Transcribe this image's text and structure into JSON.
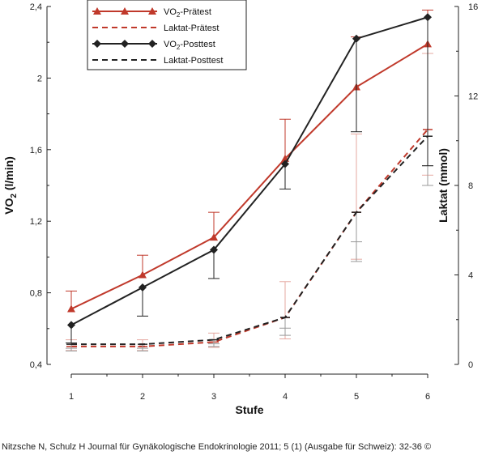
{
  "chart_data": {
    "type": "line",
    "categories": [
      "1",
      "2",
      "3",
      "4",
      "5",
      "6"
    ],
    "xlabel": "Stufe",
    "ylabel_left": {
      "main": "VO",
      "sub": "2",
      "rest": " (l/min)"
    },
    "ylabel_right": "Laktat (mmol)",
    "ylim_left": [
      0.4,
      2.4
    ],
    "yticks_left": [
      "0,4",
      "0,8",
      "1,2",
      "1,6",
      "2",
      "2,4"
    ],
    "ylim_right": [
      0,
      16
    ],
    "yticks_right": [
      "0",
      "4",
      "8",
      "12",
      "16"
    ],
    "series": [
      {
        "name_main": "VO",
        "name_sub": "2",
        "name_rest": "-Prätest",
        "axis": "left",
        "style": "solid",
        "marker": "triangle",
        "color": "#c0392b",
        "values": [
          0.71,
          0.9,
          1.11,
          1.55,
          1.95,
          2.19
        ],
        "error": [
          0.1,
          0.11,
          0.14,
          0.22,
          0.28,
          0.19
        ]
      },
      {
        "name": "Laktat-Prätest",
        "axis": "right",
        "style": "dashed",
        "marker": "none",
        "color": "#c0392b",
        "values": [
          0.8,
          0.8,
          1.0,
          2.1,
          6.8,
          10.5
        ],
        "error": [
          0.3,
          0.3,
          0.4,
          1.6,
          3.5,
          3.4
        ]
      },
      {
        "name_main": "VO",
        "name_sub": "2",
        "name_rest": "-Posttest",
        "axis": "left",
        "style": "solid",
        "marker": "diamond",
        "color": "#222222",
        "values": [
          0.62,
          0.83,
          1.04,
          1.52,
          2.22,
          2.34
        ],
        "error": [
          0.1,
          0.16,
          0.16,
          0.14,
          0.52,
          0.83
        ]
      },
      {
        "name": "Laktat-Posttest",
        "axis": "right",
        "style": "dashed",
        "marker": "none",
        "color": "#222222",
        "values": [
          0.9,
          0.9,
          1.1,
          2.1,
          6.8,
          10.2
        ],
        "error": [
          0.3,
          0.3,
          0.3,
          0.8,
          2.2,
          2.2
        ]
      }
    ],
    "legend_position": "top-left"
  },
  "citation": "Nitzsche N, Schulz H Journal für Gynäkologische Endokrinologie 2011; 5 (1) (Ausgabe für Schweiz): 32-36 ©"
}
